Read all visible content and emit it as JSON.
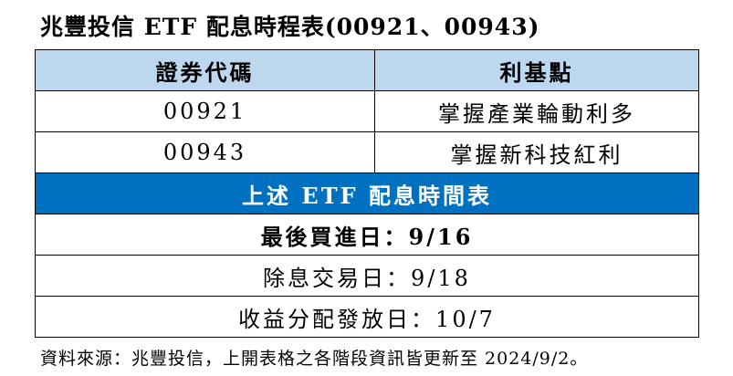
{
  "title": "兆豐投信 ETF 配息時程表(00921、00943)",
  "table": {
    "headers": [
      "證券代碼",
      "利基點"
    ],
    "rows": [
      [
        "00921",
        "掌握產業輪動利多"
      ],
      [
        "00943",
        "掌握新科技紅利"
      ]
    ],
    "section_title": "上述 ETF 配息時間表",
    "schedule": [
      "最後買進日：9/16",
      "除息交易日：9/18",
      "收益分配發放日：10/7"
    ]
  },
  "source": "資料來源：兆豐投信，上開表格之各階段資訊皆更新至 2024/9/2。",
  "colors": {
    "header_bg": "#BDD7EE",
    "section_bg": "#0070C0"
  }
}
